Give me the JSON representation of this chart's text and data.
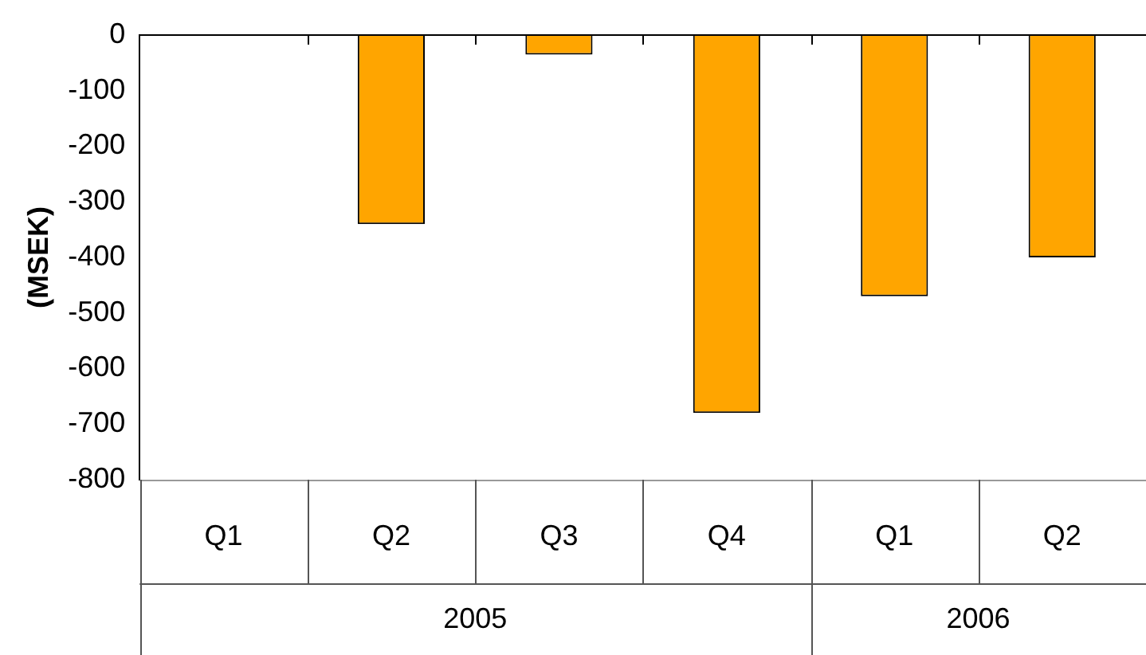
{
  "chart_data": {
    "type": "bar",
    "ylabel": "(MSEK)",
    "categories": [
      "Q1",
      "Q2",
      "Q3",
      "Q4",
      "Q1",
      "Q2"
    ],
    "values": [
      null,
      -340,
      -35,
      -680,
      -470,
      -400
    ],
    "color": "#ffa500",
    "ylim": [
      -800,
      0
    ],
    "yticks": [
      -800,
      -700,
      -600,
      -500,
      -400,
      -300,
      -200,
      -100,
      0
    ],
    "annotations": [
      "2005",
      "2006"
    ],
    "grid": false,
    "legend": false
  }
}
